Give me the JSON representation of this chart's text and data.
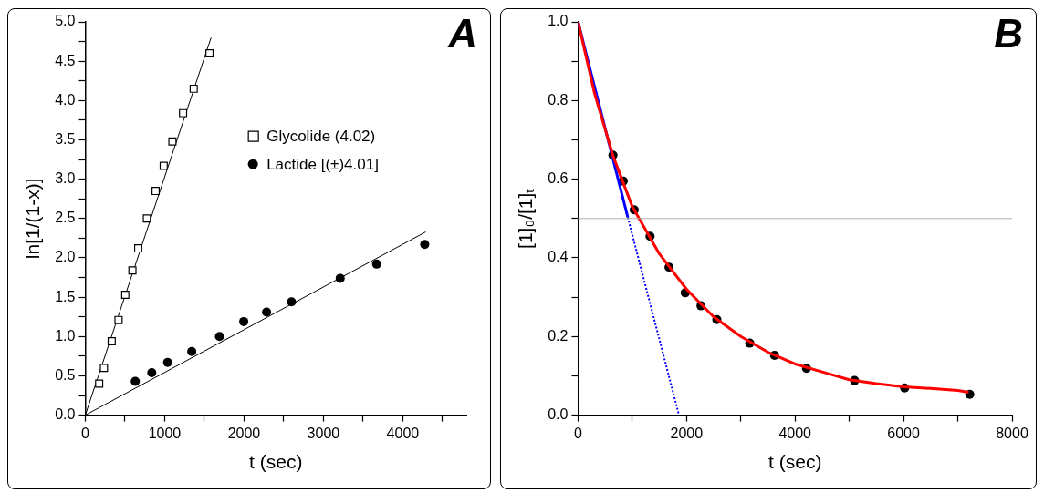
{
  "chart_data": [
    {
      "type": "scatter",
      "xlabel": "t (sec)",
      "ylabel": "ln[1/(1-x)]",
      "annotations": [
        "A"
      ],
      "legend": "top right",
      "grid": false,
      "xlim": [
        0,
        4800
      ],
      "xticks": [
        0,
        {
          "value": 500,
          "label": null
        },
        1000,
        {
          "value": 1500,
          "label": null
        },
        2000,
        {
          "value": 2500,
          "label": null
        },
        3000,
        {
          "value": 3500,
          "label": null
        },
        4000,
        {
          "value": 4500,
          "label": null
        }
      ],
      "ylim": [
        0,
        5
      ],
      "yticks": [
        {
          "value": 0,
          "label": "0.0"
        },
        {
          "value": 0.25,
          "label": null
        },
        0.5,
        {
          "value": 0.75,
          "label": null
        },
        {
          "value": 1,
          "label": "1.0"
        },
        {
          "value": 1.25,
          "label": null
        },
        1.5,
        {
          "value": 1.75,
          "label": null
        },
        {
          "value": 2,
          "label": "2.0"
        },
        {
          "value": 2.25,
          "label": null
        },
        2.5,
        {
          "value": 2.75,
          "label": null
        },
        {
          "value": 3,
          "label": "3.0"
        },
        {
          "value": 3.25,
          "label": null
        },
        3.5,
        {
          "value": 3.75,
          "label": null
        },
        {
          "value": 4,
          "label": "4.0"
        },
        {
          "value": 4.25,
          "label": null
        },
        4.5,
        {
          "value": 4.75,
          "label": null
        },
        {
          "value": 5,
          "label": "5.0"
        }
      ],
      "series": [
        {
          "name": "Glycolide (4.02)",
          "type": "scatter",
          "marker": "square",
          "color": "#000000",
          "x": [
            175,
            235,
            333,
            419,
            504,
            594,
            667,
            776,
            886,
            988,
            1098,
            1232,
            1366,
            1565
          ],
          "values": [
            0.4,
            0.6,
            0.94,
            1.21,
            1.53,
            1.84,
            2.12,
            2.5,
            2.85,
            3.17,
            3.48,
            3.84,
            4.15,
            4.6
          ]
        },
        {
          "name": "Lactide [(±)4.01]",
          "type": "scatter",
          "marker": "circle",
          "color": "#000000",
          "x": [
            630,
            838,
            1037,
            1341,
            1691,
            1996,
            2284,
            2598,
            3211,
            3670,
            4276
          ],
          "values": [
            0.43,
            0.54,
            0.67,
            0.81,
            1.0,
            1.19,
            1.31,
            1.44,
            1.74,
            1.92,
            2.17
          ]
        },
        {
          "type": "line",
          "color": "#000000",
          "x": [
            0,
            1585
          ],
          "values": [
            0,
            4.8
          ]
        },
        {
          "type": "line",
          "color": "#000000",
          "x": [
            0,
            4289
          ],
          "values": [
            0,
            2.33
          ]
        }
      ]
    },
    {
      "type": "scatter",
      "xlabel": "t (sec)",
      "ylabel": "[1]₀/[1]ₜ",
      "annotations": [
        "B"
      ],
      "grid": false,
      "xlim": [
        0,
        8000
      ],
      "xticks": [
        0,
        {
          "value": 1000,
          "label": null
        },
        2000,
        {
          "value": 3000,
          "label": null
        },
        4000,
        {
          "value": 5000,
          "label": null
        },
        6000,
        {
          "value": 7000,
          "label": null
        },
        8000
      ],
      "ylim": [
        0,
        1
      ],
      "yticks": [
        {
          "value": 0,
          "label": "0.0"
        },
        {
          "value": 0.1,
          "label": null
        },
        0.2,
        {
          "value": 0.3,
          "label": null
        },
        0.4,
        {
          "value": 0.5,
          "label": null
        },
        0.6,
        {
          "value": 0.7,
          "label": null
        },
        0.8,
        {
          "value": 0.9,
          "label": null
        },
        {
          "value": 1,
          "label": "1.0"
        }
      ],
      "ref_lines": [
        {
          "axis": "y",
          "value": 0.5,
          "color": "#b0b0b0"
        }
      ],
      "series": [
        {
          "type": "line",
          "color": "#ff0000",
          "x": [
            0,
            300,
            643,
            1000,
            1500,
            2000,
            2500,
            3000,
            3500,
            4000,
            4500,
            5000,
            5500,
            6000,
            6500,
            7000,
            7200
          ],
          "values": [
            1.0,
            0.82,
            0.66,
            0.53,
            0.41,
            0.32,
            0.25,
            0.2,
            0.16,
            0.13,
            0.11,
            0.09,
            0.08,
            0.072,
            0.068,
            0.063,
            0.058
          ]
        },
        {
          "type": "line",
          "color": "#0000ff",
          "line_style": "solid",
          "x": [
            0,
            917
          ],
          "values": [
            1.0,
            0.503
          ]
        },
        {
          "type": "line",
          "color": "#0000ff",
          "line_style": "dotted",
          "x": [
            917,
            1860
          ],
          "values": [
            0.503,
            0.0
          ]
        },
        {
          "type": "scatter",
          "marker": "circle",
          "color": "#000000",
          "x": [
            643,
            833,
            1035,
            1327,
            1677,
            1975,
            2266,
            2558,
            3165,
            3622,
            4211,
            5097,
            6020,
            7220
          ],
          "values": [
            0.661,
            0.595,
            0.522,
            0.455,
            0.376,
            0.311,
            0.278,
            0.243,
            0.183,
            0.152,
            0.119,
            0.088,
            0.069,
            0.053
          ]
        }
      ]
    }
  ]
}
